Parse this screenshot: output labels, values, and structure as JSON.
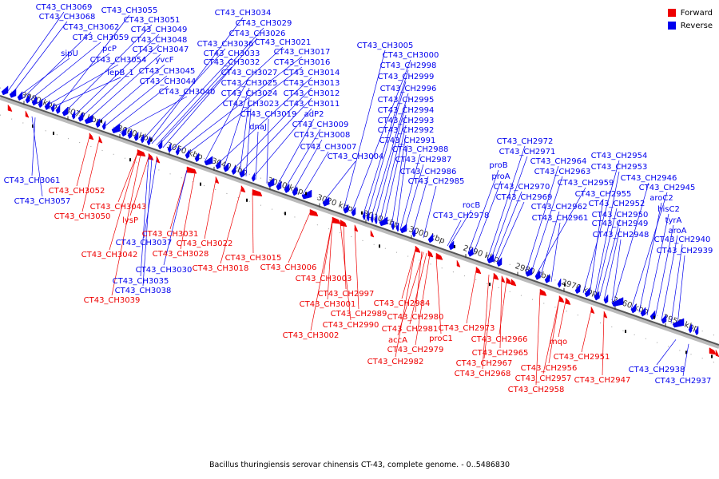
{
  "legend": {
    "forward_label": "Forward",
    "reverse_label": "Reverse",
    "forward_color": "#ee0000",
    "reverse_color": "#0000ee"
  },
  "caption": "Bacillus thuringiensis serovar chinensis CT-43, complete genome. - 0..5486830",
  "ticks": [
    "3080 kbp",
    "3070 kbp",
    "3060 kbp",
    "3050 kbp",
    "3040 kbp",
    "3030 kbp",
    "3020 kbp",
    "3010 kbp",
    "3000 kbp",
    "2990 kbp",
    "2980 kbp",
    "2970 kbp",
    "2960 kbp",
    "2950 kbp"
  ],
  "top_labels": [
    "CT43_CH3069",
    "CT43_CH3068",
    "CT43_CH3062",
    "CT43_CH3059",
    "sipU",
    "pcP",
    "lepB_1",
    "CT43_CH3055",
    "CT43_CH3051",
    "CT43_CH3049",
    "CT43_CH3048",
    "CT43_CH3047",
    "yvcF",
    "CT43_CH3054",
    "CT43_CH3045",
    "CT43_CH3044",
    "CT43_CH3040",
    "CT43_CH3034",
    "CT43_CH3029",
    "CT43_CH3026",
    "CT43_CH3036",
    "CT43_CH3021",
    "CT43_CH3033",
    "CT43_CH3017",
    "CT43_CH3032",
    "CT43_CH3016",
    "CT43_CH3027",
    "CT43_CH3014",
    "CT43_CH3025",
    "CT43_CH3013",
    "CT43_CH3024",
    "CT43_CH3012",
    "CT43_CH3023",
    "CT43_CH3011",
    "CT43_CH3019",
    "adP2",
    "dnaJ",
    "CT43_CH3009",
    "CT43_CH3008",
    "CT43_CH3007",
    "CT43_CH3004",
    "CT43_CH3005",
    "CT43_CH3000",
    "CT43_CH2998",
    "CT43_CH2999",
    "CT43_CH2996",
    "CT43_CH2995",
    "CT43_CH2994",
    "CT43_CH2993",
    "CT43_CH2992",
    "CT43_CH2991",
    "CT43_CH2988",
    "CT43_CH2987",
    "CT43_CH2986",
    "CT43_CH2985",
    "CT43_CH2972",
    "CT43_CH2971",
    "proB",
    "CT43_CH2964",
    "proA",
    "CT43_CH2963",
    "CT43_CH2970",
    "CT43_CH2969",
    "CT43_CH2959",
    "rocB",
    "CT43_CH2978",
    "CT43_CH2962",
    "CT43_CH2961",
    "CT43_CH2954",
    "CT43_CH2953",
    "CT43_CH2946",
    "CT43_CH2945",
    "CT43_CH2955",
    "aroC2",
    "CT43_CH2952",
    "hisC2",
    "CT43_CH2950",
    "tyrA",
    "CT43_CH2949",
    "aroA",
    "CT43_CH2948",
    "CT43_CH2940",
    "CT43_CH2939"
  ],
  "bottom_labels": [
    "CT43_CH3061",
    "CT43_CH3052",
    "CT43_CH3057",
    "CT43_CH3043",
    "CT43_CH3050",
    "lysP",
    "CT43_CH3031",
    "CT43_CH3037",
    "CT43_CH3022",
    "CT43_CH3042",
    "CT43_CH3028",
    "CT43_CH3015",
    "CT43_CH3030",
    "CT43_CH3018",
    "CT43_CH3006",
    "CT43_CH3035",
    "CT43_CH3038",
    "CT43_CH3039",
    "CT43_CH3003",
    "CT43_CH2997",
    "CT43_CH3001",
    "CT43_CH2989",
    "CT43_CH2984",
    "CT43_CH2990",
    "CT43_CH2980",
    "CT43_CH3002",
    "CT43_CH2981",
    "CT43_CH2973",
    "accA",
    "proC1",
    "CT43_CH2979",
    "CT43_CH2966",
    "CT43_CH2982",
    "CT43_CH2965",
    "mqo",
    "CT43_CH2967",
    "CT43_CH2951",
    "CT43_CH2968",
    "CT43_CH2956",
    "CT43_CH2957",
    "CT43_CH2947",
    "CT43_CH2958",
    "CT43_CH2938",
    "CT43_CH2937"
  ]
}
